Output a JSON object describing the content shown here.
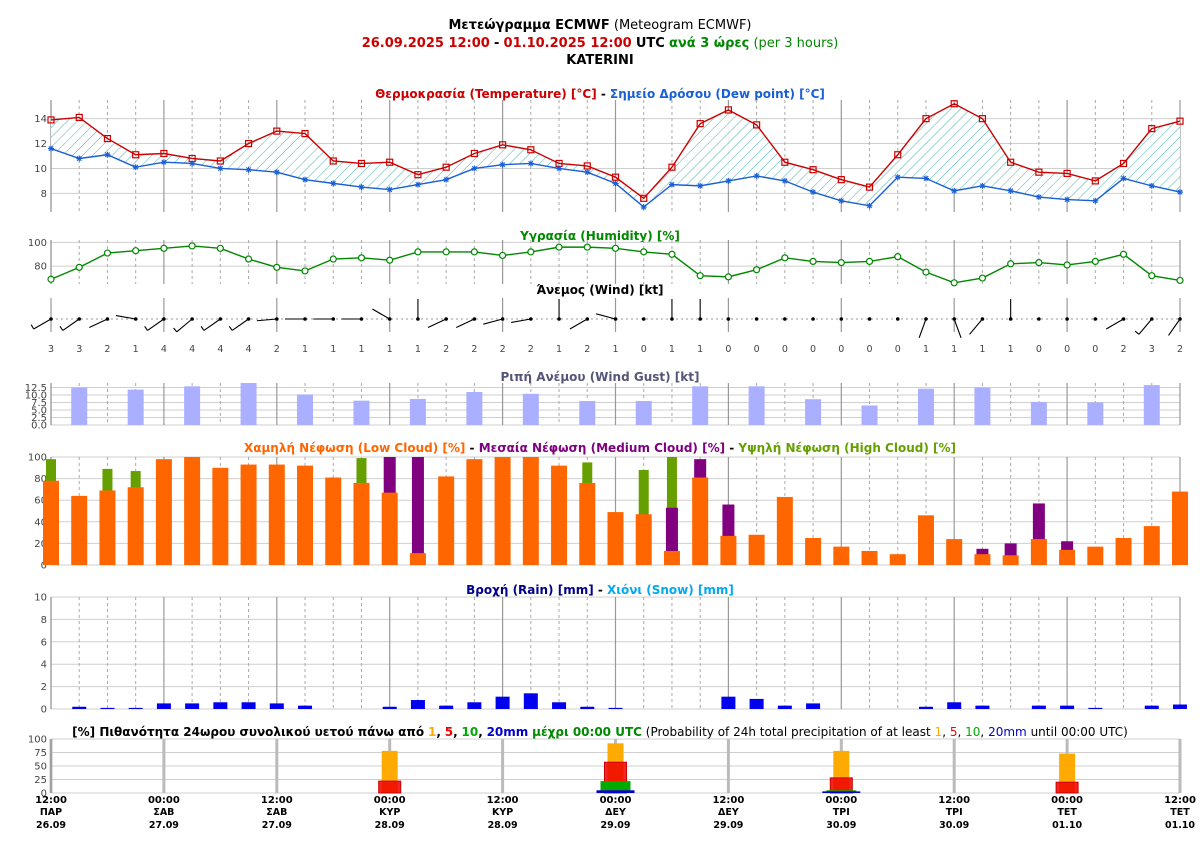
{
  "header": {
    "title_gr": "Μετεώγραμμα ECMWF",
    "title_en": "(Meteogram ECMWF)",
    "range_start": "26.09.2025 12:00",
    "range_sep": "-",
    "range_end": "01.10.2025 12:00",
    "utc": "UTC",
    "step_gr": "ανά 3 ώρες",
    "step_en": "(per 3 hours)",
    "location": "KATERINI"
  },
  "titles": {
    "temp_gr": "Θερμοκρασία (Temperature) [°C]",
    "sep": " - ",
    "dew_gr": "Σημείο Δρόσου (Dew point) [°C]",
    "humidity": "Υγρασία (Humidity) [%]",
    "wind": "Άνεμος (Wind) [kt]",
    "gust": "Ριπή Ανέμου (Wind Gust) [kt]",
    "low_cloud": "Χαμηλή Νέφωση (Low Cloud) [%]",
    "med_cloud": "Μεσαία Νέφωση (Medium Cloud) [%]",
    "high_cloud": "Υψηλή Νέφωση (High Cloud) [%]",
    "rain": "Βροχή (Rain) [mm]",
    "snow": "Χιόνι (Snow) [mm]",
    "prob_a": "[%] Πιθανότητα 24ωρου συνολικού υετού πάνω από",
    "prob_t1": "1",
    "prob_c": ",",
    "prob_t5": "5",
    "prob_t10": "10",
    "prob_t20": "20mm",
    "prob_b": "μέχρι 00:00 UTC",
    "prob_en_a": "(Probability of 24h total precipitation of at least",
    "prob_en_b": "until 00:00 UTC)"
  },
  "colors": {
    "temperature": "#cc0000",
    "dew_point": "#1a5fd6",
    "humidity": "#008800",
    "gust": "#aab0ff",
    "low_cloud": "#ff6600",
    "medium_cloud": "#800080",
    "high_cloud": "#66a000",
    "rain": "#0000ee",
    "snow": "#00aaee",
    "p1": "#ffaa00",
    "p5": "#ee0000",
    "p10": "#00aa00",
    "p20": "#0000cc",
    "date_red": "#cc0000",
    "green_text": "#008800"
  },
  "chart_data": [
    {
      "type": "line",
      "name": "temperature-dewpoint",
      "title": "Θερμοκρασία (Temperature) [°C] - Σημείο Δρόσου (Dew point) [°C]",
      "ylim": [
        6.5,
        15.5
      ],
      "yticks": [
        8,
        10,
        12,
        14
      ],
      "series": [
        {
          "name": "Θερμοκρασία (Temperature) [°C]",
          "values": [
            13.9,
            14.1,
            12.4,
            11.1,
            11.2,
            10.8,
            10.6,
            12,
            13,
            12.8,
            10.6,
            10.4,
            10.5,
            9.5,
            10.1,
            11.2,
            11.9,
            11.5,
            10.4,
            10.2,
            9.3,
            7.6,
            10.1,
            13.6,
            14.7,
            13.5,
            10.5,
            9.9,
            9.1,
            8.5,
            11.1,
            14,
            15.2,
            14,
            10.5,
            9.7,
            9.6,
            9,
            10.4,
            13.2,
            13.8
          ]
        },
        {
          "name": "Σημείο Δρόσου (Dew point) [°C]",
          "values": [
            11.6,
            10.8,
            11.1,
            10.1,
            10.5,
            10.4,
            10,
            9.9,
            9.7,
            9.1,
            8.8,
            8.5,
            8.3,
            8.7,
            9.1,
            10,
            10.3,
            10.4,
            10,
            9.7,
            8.8,
            6.9,
            8.7,
            8.6,
            9,
            9.4,
            9,
            8.1,
            7.4,
            7,
            9.3,
            9.2,
            8.2,
            8.6,
            8.2,
            7.7,
            7.5,
            7.4,
            9.2,
            8.6,
            8.1
          ]
        }
      ]
    },
    {
      "type": "line",
      "name": "humidity",
      "title": "Υγρασία (Humidity) [%]",
      "ylim": [
        65,
        102
      ],
      "yticks": [
        80,
        100
      ],
      "series": [
        {
          "name": "Υγρασία (Humidity) [%]",
          "values": [
            69,
            79,
            91,
            93,
            95,
            97,
            95,
            86,
            79,
            76,
            86,
            87,
            85,
            92,
            92,
            92,
            89,
            92,
            96,
            96,
            95,
            92,
            90,
            72,
            71,
            77,
            87,
            84,
            83,
            84,
            88,
            75,
            66,
            70,
            82,
            83,
            81,
            84,
            90,
            72,
            68
          ]
        }
      ]
    },
    {
      "type": "scatter",
      "name": "wind",
      "title": "Άνεμος (Wind) [kt]",
      "speed_kt": [
        3,
        3,
        2,
        1,
        4,
        4,
        4,
        4,
        2,
        1,
        1,
        1,
        1,
        1,
        2,
        2,
        2,
        2,
        1,
        2,
        1,
        0,
        1,
        1,
        0,
        0,
        0,
        0,
        0,
        0,
        0,
        1,
        1,
        1,
        1,
        0,
        0,
        0,
        2,
        3,
        2
      ],
      "direction_deg": [
        240,
        235,
        245,
        280,
        235,
        230,
        235,
        235,
        265,
        270,
        270,
        270,
        300,
        0,
        245,
        245,
        255,
        260,
        0,
        240,
        285,
        0,
        0,
        0,
        0,
        0,
        0,
        0,
        0,
        0,
        0,
        200,
        160,
        220,
        0,
        0,
        0,
        0,
        240,
        220,
        215
      ]
    },
    {
      "type": "bar",
      "name": "wind-gust",
      "title": "Ριπή Ανέμου (Wind Gust) [kt]",
      "ylim": [
        0,
        14
      ],
      "yticks": [
        0.0,
        2.5,
        5.0,
        7.5,
        10.0,
        12.5
      ],
      "values": [
        null,
        12.5,
        null,
        11.8,
        null,
        12.9,
        null,
        14,
        null,
        10.2,
        null,
        8.1,
        null,
        8.7,
        null,
        11,
        null,
        10.4,
        null,
        8,
        null,
        8,
        null,
        12.9,
        null,
        12.9,
        null,
        8.6,
        null,
        6.5,
        null,
        12.1,
        null,
        12.5,
        null,
        7.7,
        null,
        7.5,
        null,
        13.3,
        null
      ]
    },
    {
      "type": "bar",
      "name": "cloud-cover",
      "title": "Χαμηλή Νέφωση (Low Cloud) [%] - Μεσαία Νέφωση (Medium Cloud) [%] - Υψηλή Νέφωση (High Cloud) [%]",
      "ylim": [
        0,
        100
      ],
      "yticks": [
        0,
        20,
        40,
        60,
        80,
        100
      ],
      "series": [
        {
          "name": "Χαμηλή Νέφωση (Low Cloud) [%]",
          "values": [
            78,
            64,
            69,
            72,
            98,
            100,
            90,
            93,
            93,
            92,
            81,
            76,
            67,
            11,
            82,
            98,
            100,
            100,
            92,
            76,
            49,
            47,
            13,
            81,
            27,
            28,
            63,
            25,
            17,
            13,
            10,
            46,
            24,
            10,
            9,
            24,
            14,
            17,
            25,
            36,
            68
          ]
        },
        {
          "name": "Μεσαία Νέφωση (Medium Cloud) [%]",
          "values": [
            0,
            0,
            0,
            0,
            0,
            0,
            0,
            0,
            0,
            0,
            0,
            0,
            100,
            100,
            0,
            0,
            0,
            0,
            0,
            0,
            0,
            0,
            53,
            98,
            56,
            0,
            0,
            0,
            0,
            0,
            0,
            0,
            0,
            15,
            20,
            57,
            22,
            0,
            0,
            0,
            0
          ]
        },
        {
          "name": "Υψηλή Νέφωση (High Cloud) [%]",
          "values": [
            98,
            0,
            89,
            87,
            0,
            0,
            0,
            0,
            0,
            0,
            0,
            99,
            0,
            0,
            0,
            0,
            0,
            0,
            0,
            95,
            0,
            88,
            100,
            0,
            0,
            0,
            0,
            0,
            0,
            0,
            0,
            0,
            0,
            0,
            0,
            0,
            0,
            0,
            0,
            0,
            0
          ]
        }
      ]
    },
    {
      "type": "bar",
      "name": "rain-snow",
      "title": "Βροχή (Rain) [mm] - Χιόνι (Snow) [mm]",
      "ylim": [
        0,
        10
      ],
      "yticks": [
        0,
        2,
        4,
        6,
        8,
        10
      ],
      "series": [
        {
          "name": "Βροχή (Rain) [mm]",
          "values": [
            0,
            0.2,
            0.1,
            0.1,
            0.5,
            0.5,
            0.6,
            0.6,
            0.5,
            0.3,
            0,
            0,
            0.2,
            0.8,
            0.3,
            0.6,
            1.1,
            1.4,
            0.6,
            0.2,
            0.1,
            0,
            0,
            0,
            1.1,
            0.9,
            0.3,
            0.5,
            0,
            0,
            0,
            0.2,
            0.6,
            0.3,
            0,
            0.3,
            0.3,
            0.1,
            0,
            0.3,
            0.4
          ]
        },
        {
          "name": "Χιόνι (Snow) [mm]",
          "values": [
            0,
            0,
            0,
            0,
            0,
            0,
            0,
            0,
            0,
            0,
            0,
            0,
            0,
            0,
            0,
            0,
            0,
            0,
            0,
            0,
            0,
            0,
            0,
            0,
            0,
            0,
            0,
            0,
            0,
            0,
            0,
            0,
            0,
            0,
            0,
            0,
            0,
            0,
            0,
            0,
            0
          ]
        }
      ]
    },
    {
      "type": "bar",
      "name": "precip-probability",
      "title": "[%] Πιθανότητα 24ωρου συνολικού υετού πάνω από 1, 5, 10, 20mm μέχρι 00:00 UTC",
      "ylim": [
        0,
        100
      ],
      "yticks": [
        0,
        25,
        50,
        75,
        100
      ],
      "categories": [
        "28.09 00:00",
        "29.09 00:00",
        "30.09 00:00",
        "01.10 00:00"
      ],
      "series": [
        {
          "name": "1",
          "values": [
            78,
            92,
            78,
            73
          ]
        },
        {
          "name": "5",
          "values": [
            22,
            57,
            28,
            20
          ]
        },
        {
          "name": "10",
          "values": [
            0,
            22,
            5,
            0
          ]
        },
        {
          "name": "20mm",
          "values": [
            0,
            5,
            3,
            0
          ]
        }
      ]
    }
  ],
  "x_axis": {
    "ticks": [
      {
        "time": "12:00",
        "day": "ΠΑΡ",
        "date": "26.09"
      },
      {
        "time": "00:00",
        "day": "ΣΑΒ",
        "date": "27.09"
      },
      {
        "time": "12:00",
        "day": "ΣΑΒ",
        "date": "27.09"
      },
      {
        "time": "00:00",
        "day": "ΚΥΡ",
        "date": "28.09"
      },
      {
        "time": "12:00",
        "day": "ΚΥΡ",
        "date": "28.09"
      },
      {
        "time": "00:00",
        "day": "ΔΕΥ",
        "date": "29.09"
      },
      {
        "time": "12:00",
        "day": "ΔΕΥ",
        "date": "29.09"
      },
      {
        "time": "00:00",
        "day": "ΤΡΙ",
        "date": "30.09"
      },
      {
        "time": "12:00",
        "day": "ΤΡΙ",
        "date": "30.09"
      },
      {
        "time": "00:00",
        "day": "ΤΕΤ",
        "date": "01.10"
      },
      {
        "time": "12:00",
        "day": "ΤΕΤ",
        "date": "01.10"
      }
    ]
  }
}
